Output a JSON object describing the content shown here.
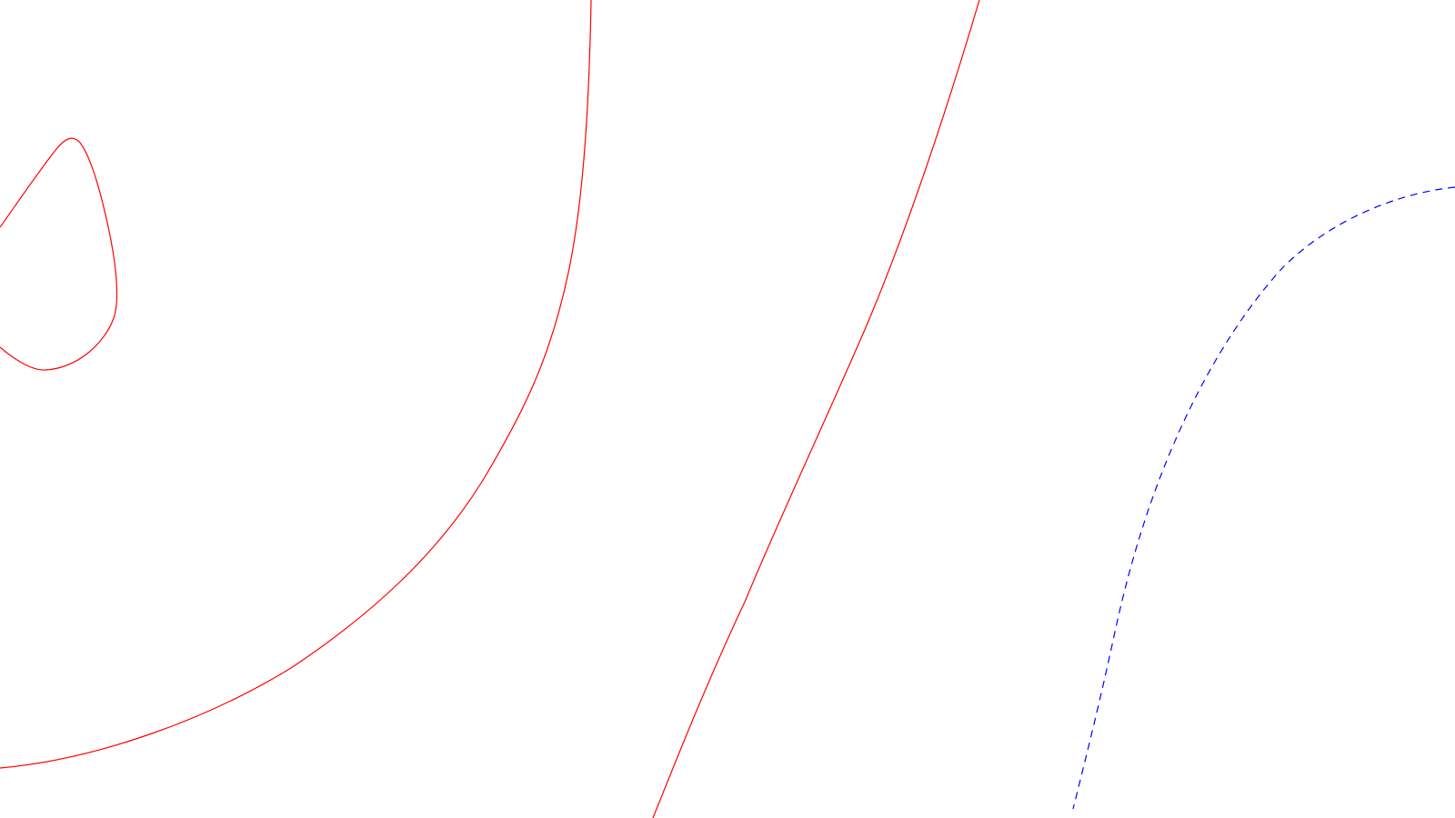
{
  "diagram": {
    "colors": {
      "background": "#ffffff",
      "solid_contour": "#ff0000",
      "dashed_contour": "#0000ff"
    },
    "curves": [
      {
        "id": "closed-loop",
        "style": "solid",
        "color": "#ff0000"
      },
      {
        "id": "left-arc",
        "style": "solid",
        "color": "#ff0000"
      },
      {
        "id": "middle-line",
        "style": "solid",
        "color": "#ff0000"
      },
      {
        "id": "right-dashed-arc",
        "style": "dashed",
        "color": "#0000ff"
      }
    ]
  }
}
